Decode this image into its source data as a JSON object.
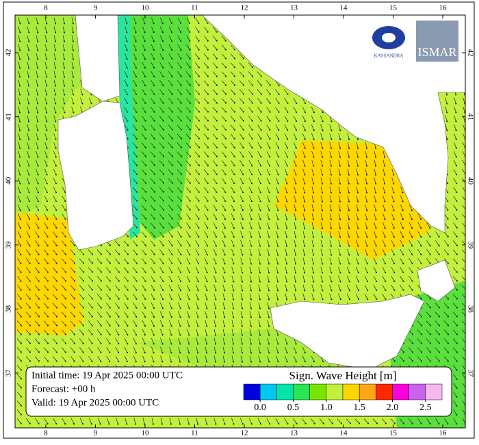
{
  "map": {
    "lon_range": [
      7.38,
      16.455
    ],
    "lat_range": [
      36.145,
      42.588
    ],
    "lon_ticks": [
      8,
      9,
      10,
      11,
      12,
      13,
      14,
      15,
      16
    ],
    "lat_ticks": [
      37,
      38,
      39,
      40,
      41,
      42
    ]
  },
  "info": {
    "initial": "Initial time: 19 Apr 2025 00:00 UTC",
    "forecast": "Forecast: +00 h",
    "valid": "Valid: 19 Apr 2025 00:00 UTC"
  },
  "colorbar": {
    "title": "Sign. Wave Height [m]",
    "range": [
      -0.25,
      2.75
    ],
    "colors": [
      "#0000dc",
      "#00c8f0",
      "#00e6aa",
      "#28e650",
      "#78e600",
      "#c3f03c",
      "#ffd700",
      "#ffa514",
      "#ff2800",
      "#ff00dc",
      "#c864f0",
      "#f5b9f0"
    ],
    "ticks": [
      {
        "value": 0,
        "label": "0.0"
      },
      {
        "value": 0.5,
        "label": "0.5"
      },
      {
        "value": 1,
        "label": "1.0"
      },
      {
        "value": 1.5,
        "label": "1.5"
      },
      {
        "value": 2,
        "label": "2.0"
      },
      {
        "value": 2.5,
        "label": "2.5"
      }
    ]
  },
  "logos": {
    "left": "KASSANDRA",
    "right": "ISMAR"
  }
}
